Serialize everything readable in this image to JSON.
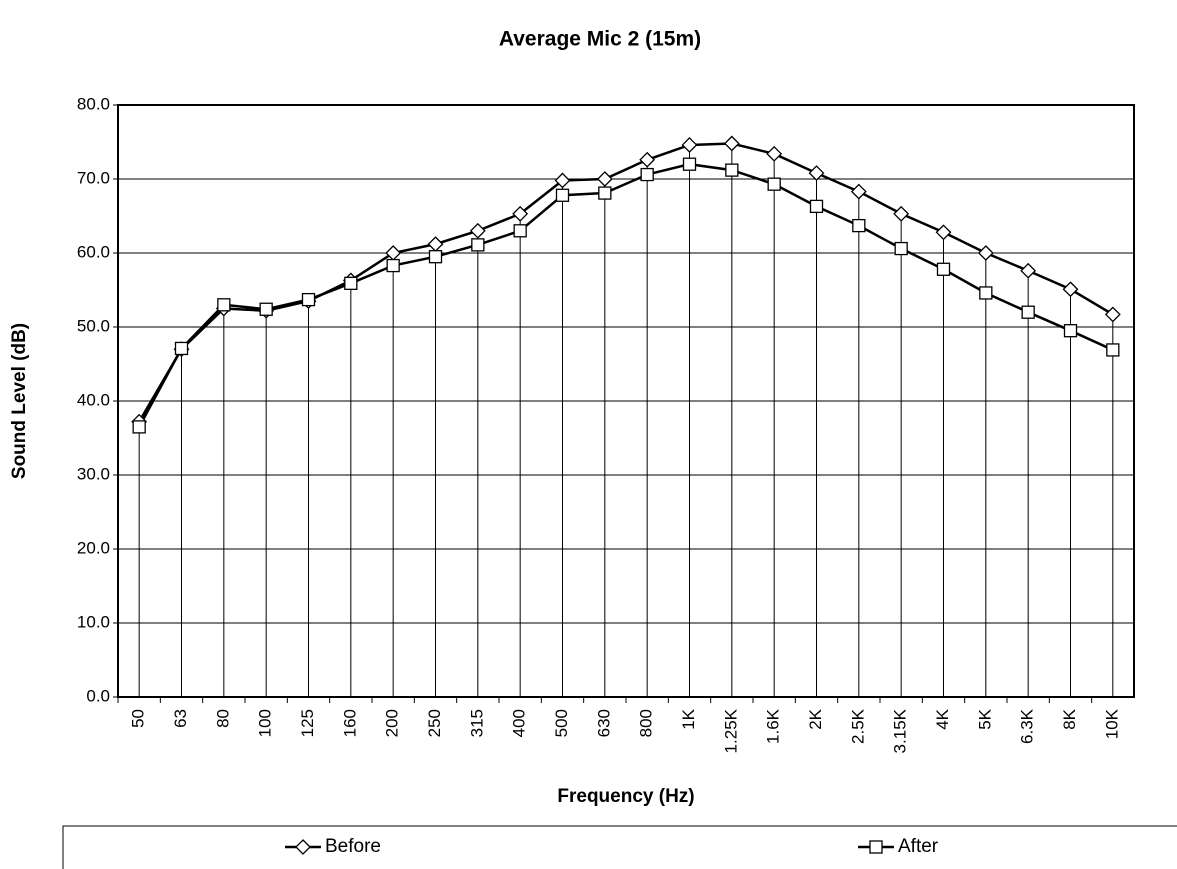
{
  "chart_data": {
    "type": "line",
    "title": "Average Mic 2 (15m)",
    "x_label": "Frequency (Hz)",
    "y_label": "Sound Level (dB)",
    "categories": [
      "50",
      "63",
      "80",
      "100",
      "125",
      "160",
      "200",
      "250",
      "315",
      "400",
      "500",
      "630",
      "800",
      "1K",
      "1.25K",
      "1.6K",
      "2K",
      "2.5K",
      "3.15K",
      "4K",
      "5K",
      "6.3K",
      "8K",
      "10K"
    ],
    "series": [
      {
        "name": "Before",
        "color": "#000000",
        "marker": "diamond",
        "values": [
          37.2,
          47.0,
          52.5,
          52.2,
          53.5,
          56.3,
          60.0,
          61.2,
          63.0,
          65.3,
          69.8,
          70.0,
          72.6,
          74.6,
          74.8,
          73.4,
          70.8,
          68.3,
          65.3,
          62.8,
          60.0,
          57.6,
          55.1,
          51.7
        ]
      },
      {
        "name": "After",
        "color": "#000000",
        "marker": "square",
        "values": [
          36.5,
          47.1,
          53.0,
          52.4,
          53.7,
          55.9,
          58.3,
          59.5,
          61.1,
          63.0,
          67.8,
          68.1,
          70.6,
          72.0,
          71.2,
          69.3,
          66.3,
          63.7,
          60.6,
          57.8,
          54.6,
          52.0,
          49.5,
          46.9
        ]
      }
    ],
    "ylim": [
      0,
      80
    ],
    "yticks": [
      {
        "value": 0,
        "label": "0.0"
      },
      {
        "value": 10,
        "label": "10.0"
      },
      {
        "value": 20,
        "label": "20.0"
      },
      {
        "value": 30,
        "label": "30.0"
      },
      {
        "value": 40,
        "label": "40.0"
      },
      {
        "value": 50,
        "label": "50.0"
      },
      {
        "value": 60,
        "label": "60.0"
      },
      {
        "value": 70,
        "label": "70.0"
      },
      {
        "value": 80,
        "label": "80.0"
      }
    ],
    "grid": true,
    "drop_lines": true,
    "legend": "bottom"
  }
}
